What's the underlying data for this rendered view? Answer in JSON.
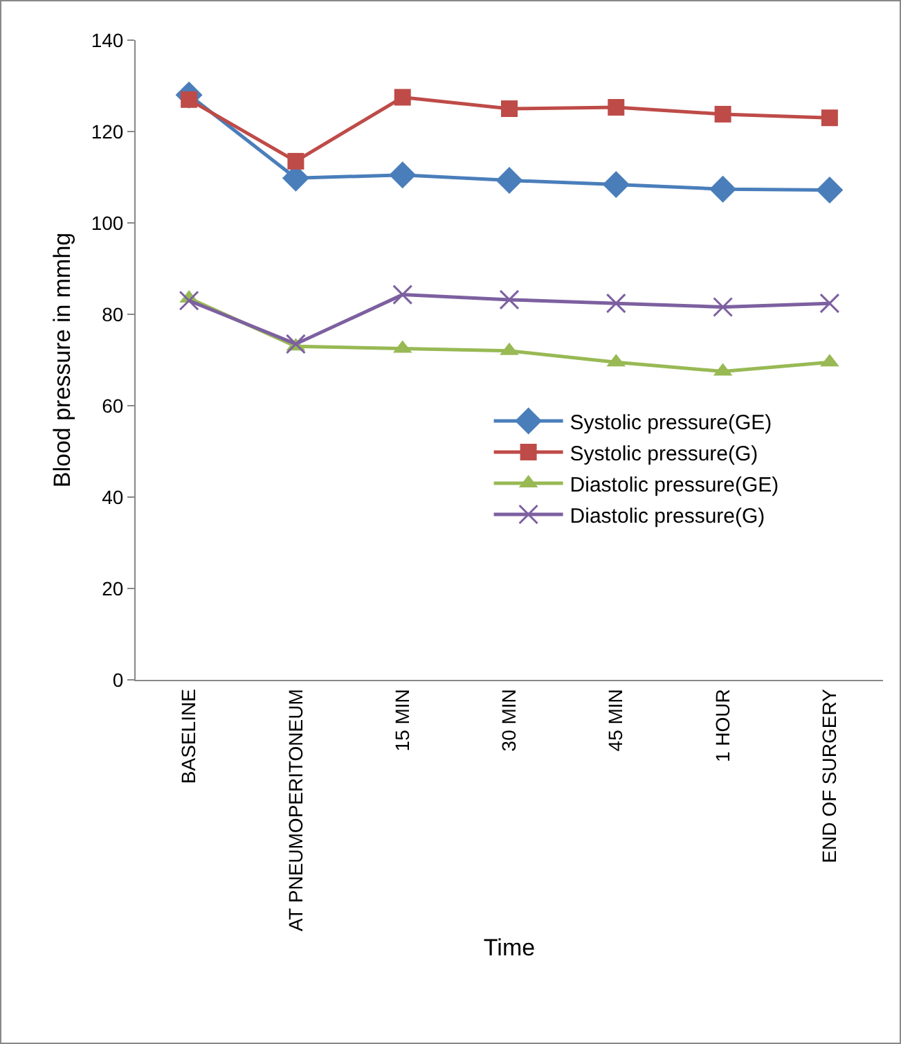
{
  "chart_data": {
    "type": "line",
    "xlabel": "Time",
    "ylabel": "Blood pressure in mmhg",
    "categories": [
      "BASELINE",
      "AT PNEUMOPERITONEUM",
      "15 MIN",
      "30 MIN",
      "45 MIN",
      "1 HOUR",
      "END OF SURGERY"
    ],
    "series": [
      {
        "name": "Systolic pressure(GE)",
        "color": "#4a7ebb",
        "marker": "diamond",
        "values": [
          128,
          109.8,
          110.5,
          109.3,
          108.4,
          107.4,
          107.2
        ]
      },
      {
        "name": "Systolic pressure(G)",
        "color": "#be4b48",
        "marker": "square",
        "values": [
          127,
          113.5,
          127.5,
          125,
          125.3,
          123.8,
          123
        ]
      },
      {
        "name": "Diastolic pressure(GE)",
        "color": "#98b954",
        "marker": "triangle",
        "values": [
          83.5,
          73,
          72.5,
          72,
          69.5,
          67.5,
          69.5
        ]
      },
      {
        "name": "Diastolic pressure(G)",
        "color": "#7d60a0",
        "marker": "cross",
        "values": [
          83,
          73.5,
          84.3,
          83.2,
          82.4,
          81.6,
          82.4
        ]
      }
    ],
    "ylim": [
      0,
      140
    ],
    "yticks": [
      0,
      20,
      40,
      60,
      80,
      100,
      120,
      140
    ],
    "grid": false,
    "legend": "right",
    "line_style": "solid"
  }
}
